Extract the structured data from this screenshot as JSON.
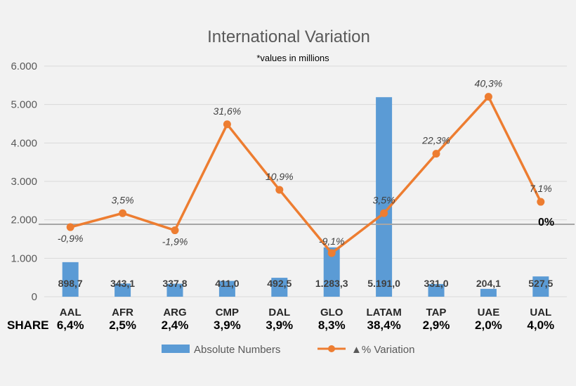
{
  "colors": {
    "bar": "#5b9bd5",
    "line": "#ed7d31",
    "grid": "#d9d9d9",
    "reference": "#a6a6a6"
  },
  "chart_data": {
    "type": "bar+line",
    "title": "International Variation",
    "subtitle": "*values in millions",
    "categories": [
      "AAL",
      "AFR",
      "ARG",
      "CMP",
      "DAL",
      "GLO",
      "LATAM",
      "TAP",
      "UAE",
      "UAL"
    ],
    "share_label": "SHARE",
    "share": [
      "6,4%",
      "2,5%",
      "2,4%",
      "3,9%",
      "3,9%",
      "8,3%",
      "38,4%",
      "2,9%",
      "2,0%",
      "4,0%"
    ],
    "y_ticks": [
      "0",
      "1.000",
      "2.000",
      "3.000",
      "4.000",
      "5.000",
      "6.000"
    ],
    "ylim": [
      0,
      6000
    ],
    "grid": true,
    "legend_position": "bottom",
    "series": [
      {
        "name": "Absolute Numbers",
        "type": "bar",
        "values": [
          898.7,
          343.1,
          337.8,
          411.0,
          492.5,
          1283.3,
          5191.0,
          331.0,
          204.1,
          527.5
        ],
        "labels": [
          "898,7",
          "343,1",
          "337,8",
          "411,0",
          "492,5",
          "1.283,3",
          "5.191,0",
          "331,0",
          "204,1",
          "527,5"
        ]
      },
      {
        "name": "▲% Variation",
        "type": "line",
        "values": [
          -0.9,
          3.5,
          -1.9,
          31.6,
          10.9,
          -9.1,
          3.5,
          22.3,
          40.3,
          7.1
        ],
        "labels": [
          "-0,9%",
          "3,5%",
          "-1,9%",
          "31,6%",
          "10,9%",
          "-9,1%",
          "3,5%",
          "22,3%",
          "40,3%",
          "7,1%"
        ],
        "reference_label": "0%"
      }
    ]
  }
}
